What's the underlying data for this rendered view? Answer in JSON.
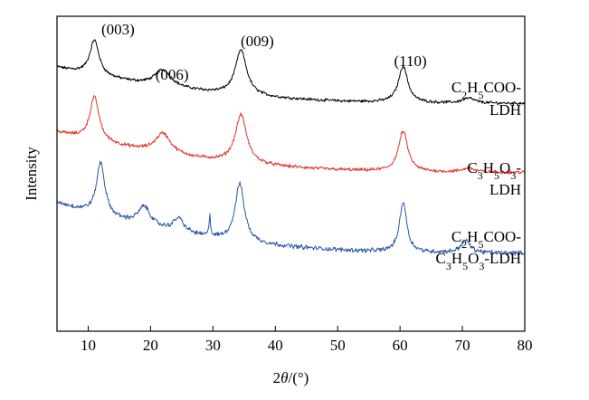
{
  "chart_data": {
    "type": "line",
    "xlabel": "2θ/(°)",
    "ylabel": "Intensity",
    "xlim": [
      5,
      80
    ],
    "xticks": [
      "10",
      "20",
      "30",
      "40",
      "50",
      "60",
      "70",
      "80"
    ],
    "yticks_shown": false,
    "grid": false,
    "legend": "none",
    "series": [
      {
        "name_lines": [
          "C2H5COO-",
          "LDH"
        ],
        "color": "#000000",
        "baseline_start": 1.08,
        "baseline_end": 0.0,
        "noise": 0.035,
        "peaks": [
          {
            "two_theta": 11.0,
            "height": 1.05,
            "width": 0.9
          },
          {
            "two_theta": 22.0,
            "height": 0.5,
            "width": 1.6
          },
          {
            "two_theta": 34.5,
            "height": 1.35,
            "width": 1.1
          },
          {
            "two_theta": 60.5,
            "height": 1.1,
            "width": 0.9
          },
          {
            "two_theta": 71.0,
            "height": 0.15,
            "width": 1.2
          }
        ]
      },
      {
        "name_lines": [
          "C3H5O3-",
          "LDH"
        ],
        "color": "#e8312a",
        "baseline_start": 1.2,
        "baseline_end": 0.0,
        "noise": 0.04,
        "peaks": [
          {
            "two_theta": 11.0,
            "height": 1.3,
            "width": 0.9
          },
          {
            "two_theta": 22.0,
            "height": 0.6,
            "width": 1.5
          },
          {
            "two_theta": 34.5,
            "height": 1.45,
            "width": 1.1
          },
          {
            "two_theta": 60.5,
            "height": 1.2,
            "width": 0.9
          },
          {
            "two_theta": 71.0,
            "height": 0.12,
            "width": 1.2
          }
        ]
      },
      {
        "name_lines": [
          "C2H5COO-",
          "C3H5O3-LDH"
        ],
        "color": "#2a56a8",
        "baseline_start": 2.0,
        "baseline_end": 0.0,
        "noise": 0.07,
        "peaks": [
          {
            "two_theta": 12.0,
            "height": 2.1,
            "width": 0.8
          },
          {
            "two_theta": 19.0,
            "height": 0.75,
            "width": 1.2
          },
          {
            "two_theta": 24.5,
            "height": 0.55,
            "width": 1.0
          },
          {
            "two_theta": 29.5,
            "height": 0.9,
            "width": 0.12
          },
          {
            "two_theta": 34.3,
            "height": 2.3,
            "width": 0.9
          },
          {
            "two_theta": 60.5,
            "height": 2.0,
            "width": 0.7
          },
          {
            "two_theta": 70.5,
            "height": 0.5,
            "width": 0.9
          }
        ]
      }
    ],
    "annotations": [
      {
        "label": "(003)",
        "two_theta": 11.0
      },
      {
        "label": "(006)",
        "two_theta": 22.0
      },
      {
        "label": "(009)",
        "two_theta": 34.5
      },
      {
        "label": "(110)",
        "two_theta": 60.5
      }
    ]
  }
}
